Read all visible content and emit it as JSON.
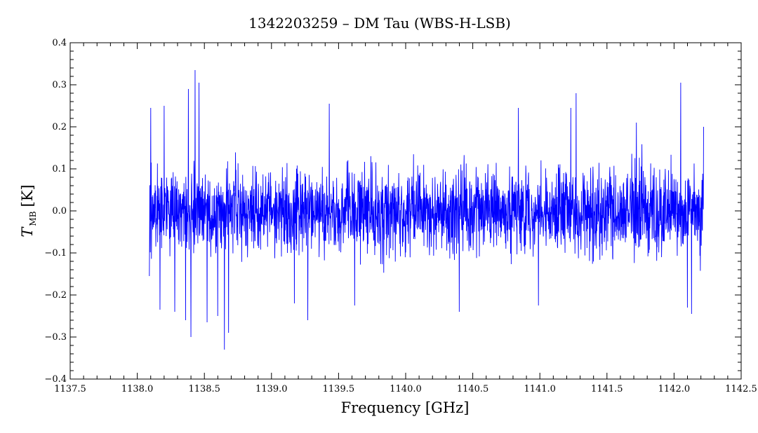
{
  "chart_data": {
    "type": "line",
    "title": "1342203259 – DM Tau (WBS-H-LSB)",
    "xlabel": "Frequency [GHz]",
    "ylabel": {
      "symbol": "T",
      "subscript": "MB",
      "unit": "[K]"
    },
    "xlim": [
      1137.5,
      1142.5
    ],
    "ylim": [
      -0.4,
      0.4
    ],
    "xticks": [
      1137.5,
      1138.0,
      1138.5,
      1139.0,
      1139.5,
      1140.0,
      1140.5,
      1141.0,
      1141.5,
      1142.0,
      1142.5
    ],
    "xtick_labels": [
      "1137.5",
      "1138.0",
      "1138.5",
      "1139.0",
      "1139.5",
      "1140.0",
      "1140.5",
      "1141.0",
      "1141.5",
      "1142.0",
      "1142.5"
    ],
    "yticks": [
      -0.4,
      -0.3,
      -0.2,
      -0.1,
      0.0,
      0.1,
      0.2,
      0.3,
      0.4
    ],
    "ytick_labels": [
      "−0.4",
      "−0.3",
      "−0.2",
      "−0.1",
      "0.0",
      "0.1",
      "0.2",
      "0.3",
      "0.4"
    ],
    "grid": false,
    "series": [
      {
        "color": "#0000ff",
        "x_range": [
          1138.09,
          1142.22
        ],
        "noise_rms": 0.08,
        "extrema": [
          [
            1138.09,
            -0.155
          ],
          [
            1138.1,
            0.245
          ],
          [
            1138.17,
            -0.235
          ],
          [
            1138.2,
            0.25
          ],
          [
            1138.28,
            -0.24
          ],
          [
            1138.36,
            -0.26
          ],
          [
            1138.38,
            0.29
          ],
          [
            1138.4,
            -0.3
          ],
          [
            1138.43,
            0.335
          ],
          [
            1138.46,
            0.305
          ],
          [
            1138.52,
            -0.265
          ],
          [
            1138.6,
            -0.25
          ],
          [
            1138.65,
            -0.33
          ],
          [
            1138.68,
            -0.29
          ],
          [
            1139.17,
            -0.22
          ],
          [
            1139.27,
            -0.26
          ],
          [
            1139.43,
            0.255
          ],
          [
            1139.62,
            -0.225
          ],
          [
            1140.4,
            -0.24
          ],
          [
            1140.84,
            0.245
          ],
          [
            1140.99,
            -0.225
          ],
          [
            1141.23,
            0.245
          ],
          [
            1141.27,
            0.28
          ],
          [
            1141.72,
            0.21
          ],
          [
            1142.05,
            0.305
          ],
          [
            1142.1,
            -0.23
          ],
          [
            1142.13,
            -0.245
          ],
          [
            1142.22,
            0.2
          ]
        ]
      }
    ]
  }
}
